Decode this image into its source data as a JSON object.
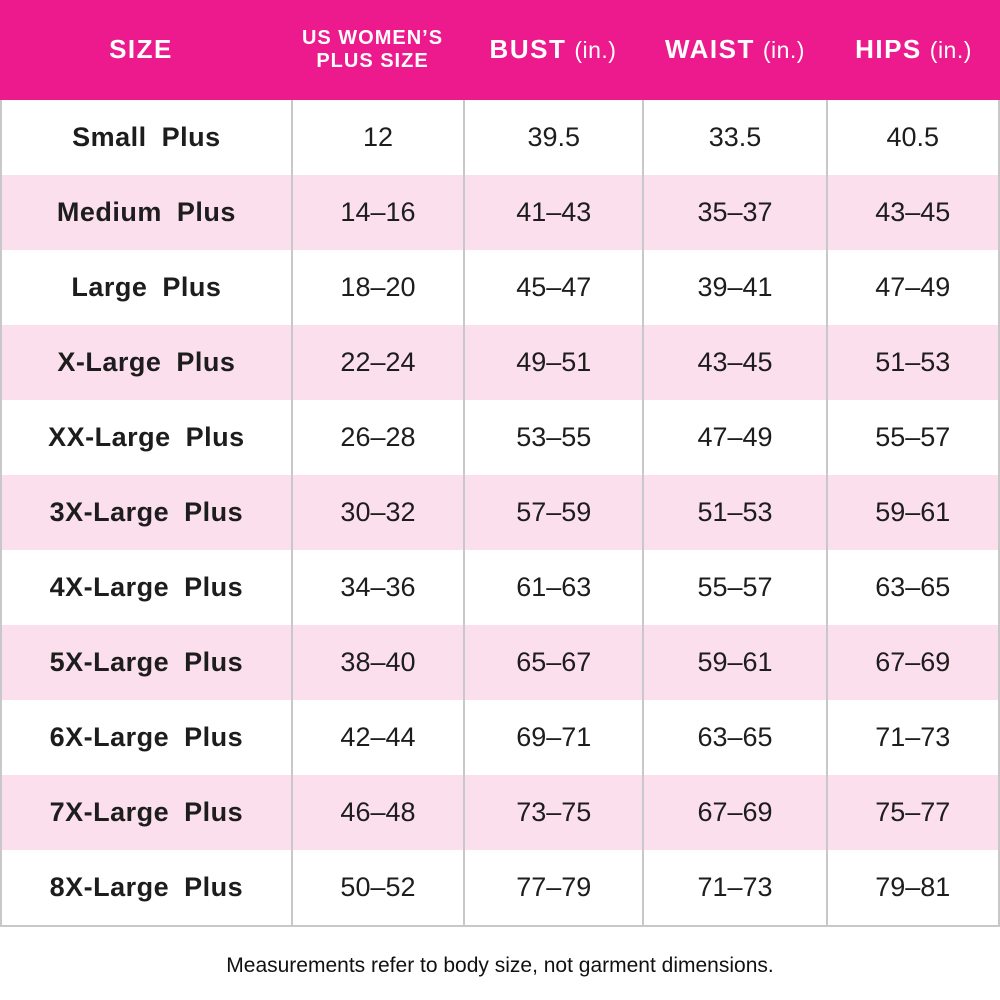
{
  "chart_data": {
    "type": "table",
    "columns": [
      {
        "label": "SIZE",
        "unit": ""
      },
      {
        "label": "US WOMEN’S PLUS SIZE",
        "unit": ""
      },
      {
        "label": "BUST",
        "unit": "(in.)"
      },
      {
        "label": "WAIST",
        "unit": "(in.)"
      },
      {
        "label": "HIPS",
        "unit": "(in.)"
      }
    ],
    "rows": [
      {
        "size": "Small Plus",
        "plus_size": "12",
        "bust": "39.5",
        "waist": "33.5",
        "hips": "40.5"
      },
      {
        "size": "Medium Plus",
        "plus_size": "14–16",
        "bust": "41–43",
        "waist": "35–37",
        "hips": "43–45"
      },
      {
        "size": "Large Plus",
        "plus_size": "18–20",
        "bust": "45–47",
        "waist": "39–41",
        "hips": "47–49"
      },
      {
        "size": "X-Large Plus",
        "plus_size": "22–24",
        "bust": "49–51",
        "waist": "43–45",
        "hips": "51–53"
      },
      {
        "size": "XX-Large Plus",
        "plus_size": "26–28",
        "bust": "53–55",
        "waist": "47–49",
        "hips": "55–57"
      },
      {
        "size": "3X-Large Plus",
        "plus_size": "30–32",
        "bust": "57–59",
        "waist": "51–53",
        "hips": "59–61"
      },
      {
        "size": "4X-Large Plus",
        "plus_size": "34–36",
        "bust": "61–63",
        "waist": "55–57",
        "hips": "63–65"
      },
      {
        "size": "5X-Large Plus",
        "plus_size": "38–40",
        "bust": "65–67",
        "waist": "59–61",
        "hips": "67–69"
      },
      {
        "size": "6X-Large Plus",
        "plus_size": "42–44",
        "bust": "69–71",
        "waist": "63–65",
        "hips": "71–73"
      },
      {
        "size": "7X-Large Plus",
        "plus_size": "46–48",
        "bust": "73–75",
        "waist": "67–69",
        "hips": "75–77"
      },
      {
        "size": "8X-Large Plus",
        "plus_size": "50–52",
        "bust": "77–79",
        "waist": "71–73",
        "hips": "79–81"
      }
    ],
    "footnote": "Measurements refer to body size, not garment dimensions."
  },
  "colors": {
    "header_bg": "#EC1A8D",
    "header_text": "#FFFFFF",
    "stripe_bg": "#FBDFEC",
    "grid_line": "#C8C8C8",
    "body_text": "#1D1D1D"
  }
}
